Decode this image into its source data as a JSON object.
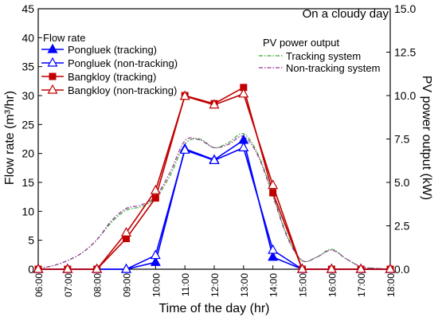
{
  "chart_data": {
    "type": "line",
    "annotation": "On a cloudy day",
    "xlabel": "Time of the day (hr)",
    "ylabel_left": "Flow rate (m³/hr)",
    "ylabel_right": "PV power output (kW)",
    "x": [
      "06:00",
      "07:00",
      "08:00",
      "09:00",
      "10:00",
      "11:00",
      "12:00",
      "13:00",
      "14:00",
      "15:00",
      "16:00",
      "17:00",
      "18:00"
    ],
    "ylim_left": [
      0,
      45
    ],
    "yticks_left": [
      "0",
      "5",
      "10",
      "15",
      "20",
      "25",
      "30",
      "35",
      "40",
      "45"
    ],
    "ylim_right": [
      0,
      15
    ],
    "yticks_right": [
      "0.0",
      "2.5",
      "5.0",
      "7.5",
      "10.0",
      "12.5",
      "15.0"
    ],
    "grid": false,
    "legend_flow": {
      "title": "Flow rate",
      "position": "top-left",
      "entries": [
        "Pongluek (tracking)",
        "Pongluek (non-tracking)",
        "Bangkloy (tracking)",
        "Bangkloy (non-tracking)"
      ]
    },
    "legend_pv": {
      "title": "PV power output",
      "position": "top-right",
      "entries": [
        "Tracking system",
        "Non-tracking system"
      ]
    },
    "flow_series": [
      {
        "name": "Pongluek (tracking)",
        "color": "#0000ff",
        "marker": "triangle-filled",
        "values": [
          0,
          0,
          0,
          0,
          1.2,
          20.8,
          18.9,
          22.3,
          2.1,
          0,
          0,
          0,
          0
        ]
      },
      {
        "name": "Pongluek (non-tracking)",
        "color": "#0000ff",
        "marker": "triangle-open",
        "values": [
          0,
          0,
          0,
          0,
          2.4,
          20.6,
          18.8,
          21.0,
          3.3,
          0,
          0,
          0,
          0
        ]
      },
      {
        "name": "Bangkloy (tracking)",
        "color": "#c00000",
        "marker": "square-filled",
        "values": [
          0,
          0,
          0,
          5.3,
          12.3,
          30.0,
          28.6,
          31.4,
          13.2,
          0,
          0,
          0,
          0
        ]
      },
      {
        "name": "Bangkloy (non-tracking)",
        "color": "#c00000",
        "marker": "triangle-open",
        "values": [
          0,
          0,
          0,
          6.3,
          13.6,
          29.9,
          28.4,
          30.3,
          14.5,
          0,
          0,
          0,
          0
        ]
      }
    ],
    "pv_series": [
      {
        "name": "Tracking system",
        "color": "#33aa33",
        "dash": "dash-dot",
        "x": [
          0,
          0.5,
          1,
          1.5,
          2,
          2.5,
          3,
          3.5,
          4,
          4.5,
          5,
          5.5,
          6,
          6.5,
          7,
          7.5,
          8,
          8.5,
          9,
          9.5,
          10,
          10.5,
          11,
          11.5,
          12
        ],
        "values": [
          0.05,
          0.2,
          0.5,
          0.95,
          1.7,
          2.7,
          3.4,
          3.6,
          4.1,
          5.4,
          7.2,
          7.5,
          7.0,
          7.3,
          7.8,
          6.6,
          4.3,
          1.9,
          0.5,
          0.7,
          1.15,
          0.6,
          0.15,
          0.05,
          0
        ]
      },
      {
        "name": "Non-tracking system",
        "color": "#993399",
        "dash": "dash-dot",
        "x": [
          0,
          0.5,
          1,
          1.5,
          2,
          2.5,
          3,
          3.5,
          4,
          4.5,
          5,
          5.5,
          6,
          6.5,
          7,
          7.5,
          8,
          8.5,
          9,
          9.5,
          10,
          10.5,
          11,
          11.5,
          12
        ],
        "values": [
          0.05,
          0.2,
          0.5,
          0.95,
          1.7,
          2.8,
          3.5,
          3.7,
          4.2,
          5.6,
          7.4,
          7.45,
          7.0,
          7.2,
          7.65,
          6.5,
          4.2,
          1.8,
          0.5,
          0.7,
          1.1,
          0.6,
          0.15,
          0.05,
          0
        ]
      }
    ]
  }
}
